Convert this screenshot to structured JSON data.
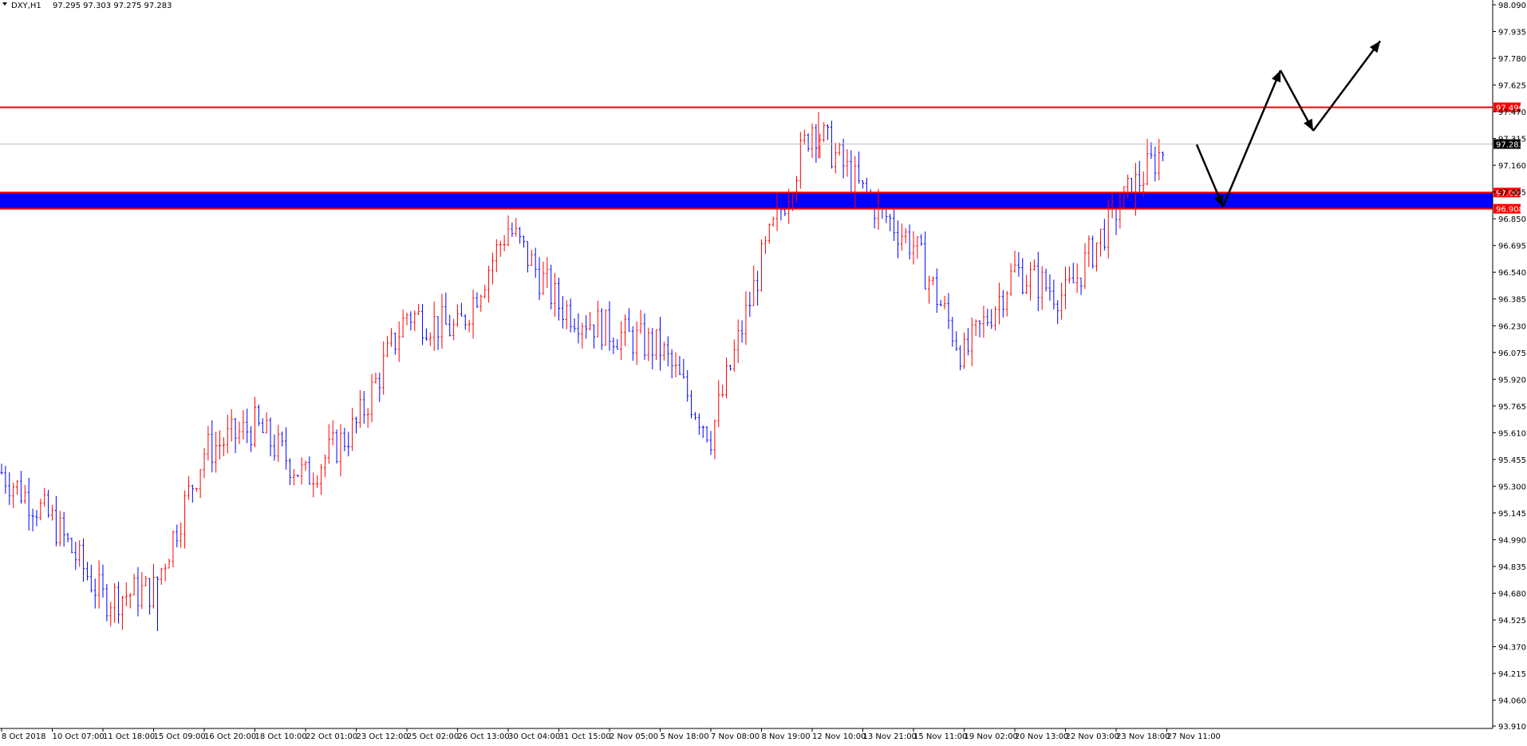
{
  "header": {
    "symbol": "DXY,H1",
    "ohlc": "97.295 97.303 97.275 97.283"
  },
  "chart_data": {
    "type": "candlestick",
    "symbol": "DXY",
    "timeframe": "H1",
    "ylim": [
      93.91,
      98.09
    ],
    "y_ticks": [
      "98.090",
      "97.935",
      "97.780",
      "97.625",
      "97.470",
      "97.315",
      "97.160",
      "97.005",
      "96.850",
      "96.695",
      "96.540",
      "96.385",
      "96.230",
      "96.075",
      "95.920",
      "95.765",
      "95.610",
      "95.455",
      "95.300",
      "95.145",
      "94.990",
      "94.835",
      "94.680",
      "94.525",
      "94.370",
      "94.215",
      "94.060",
      "93.910"
    ],
    "x_ticks": [
      "8 Oct 2018",
      "10 Oct 07:00",
      "11 Oct 18:00",
      "15 Oct 09:00",
      "16 Oct 20:00",
      "18 Oct 10:00",
      "22 Oct 01:00",
      "23 Oct 12:00",
      "25 Oct 02:00",
      "26 Oct 13:00",
      "30 Oct 04:00",
      "31 Oct 15:00",
      "2 Nov 05:00",
      "5 Nov 18:00",
      "7 Nov 08:00",
      "8 Nov 19:00",
      "12 Nov 10:00",
      "13 Nov 21:00",
      "15 Nov 11:00",
      "19 Nov 02:00",
      "20 Nov 13:00",
      "22 Nov 03:00",
      "23 Nov 18:00",
      "27 Nov 11:00"
    ],
    "grid": false,
    "up_color": "#ff0000",
    "down_color": "#0000ff",
    "price_path": [
      [
        "8 Oct 2018",
        95.38
      ],
      [
        "10 Oct 07:00",
        95.1
      ],
      [
        "11 Oct 18:00",
        94.65
      ],
      [
        "15 Oct 09:00",
        94.7
      ],
      [
        "16 Oct 20:00",
        95.5
      ],
      [
        "18 Oct 10:00",
        95.65
      ],
      [
        "22 Oct 01:00",
        95.35
      ],
      [
        "23 Oct 12:00",
        95.65
      ],
      [
        "25 Oct 02:00",
        96.3
      ],
      [
        "26 Oct 13:00",
        96.2
      ],
      [
        "30 Oct 04:00",
        96.8
      ],
      [
        "31 Oct 15:00",
        96.35
      ],
      [
        "2 Nov 05:00",
        96.2
      ],
      [
        "5 Nov 18:00",
        96.1
      ],
      [
        "7 Nov 08:00",
        95.6
      ],
      [
        "8 Nov 19:00",
        96.6
      ],
      [
        "12 Nov 10:00",
        97.4
      ],
      [
        "13 Nov 21:00",
        97.0
      ],
      [
        "15 Nov 11:00",
        96.7
      ],
      [
        "19 Nov 02:00",
        96.05
      ],
      [
        "20 Nov 13:00",
        96.55
      ],
      [
        "22 Nov 03:00",
        96.4
      ],
      [
        "23 Nov 18:00",
        96.9
      ],
      [
        "27 Nov 11:00",
        97.28
      ]
    ],
    "extremes": {
      "high": 97.47,
      "low": 94.46
    },
    "horizontal_levels": [
      {
        "price": 97.496,
        "label": "97.496",
        "color": "#ff0000"
      },
      {
        "price": 97.002,
        "label": "97.002",
        "color": "#ff0000"
      },
      {
        "price": 96.908,
        "label": "96.908",
        "color": "#ff0000"
      }
    ],
    "zone": {
      "from": 96.908,
      "to": 97.002,
      "color": "#0000ff"
    },
    "current_price": {
      "price": 97.283,
      "label": "97.283"
    },
    "projection": [
      97.28,
      96.92,
      97.71,
      97.36,
      97.88
    ]
  }
}
